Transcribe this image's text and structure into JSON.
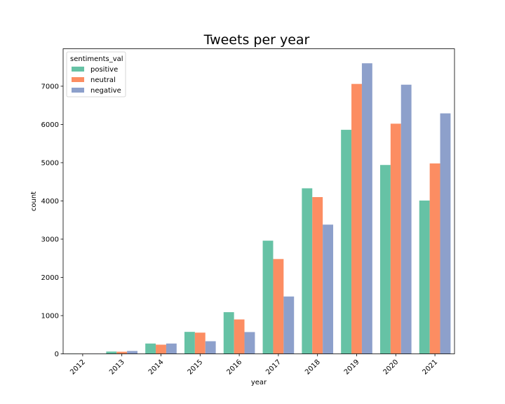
{
  "chart_data": {
    "type": "bar",
    "title": "Tweets per year",
    "xlabel": "year",
    "ylabel": "count",
    "categories": [
      "2012",
      "2013",
      "2014",
      "2015",
      "2016",
      "2017",
      "2018",
      "2019",
      "2020",
      "2021"
    ],
    "yticks": [
      0,
      1000,
      2000,
      3000,
      4000,
      5000,
      6000,
      7000
    ],
    "ylim": [
      0,
      7980
    ],
    "grid": false,
    "legend": {
      "title": "sentiments_val",
      "placement": "top-left"
    },
    "series": [
      {
        "name": "positive",
        "color": "#66c2a5",
        "values": [
          5,
          60,
          270,
          575,
          1090,
          2960,
          4330,
          5860,
          4940,
          4010
        ]
      },
      {
        "name": "neutral",
        "color": "#fc8d62",
        "values": [
          3,
          55,
          240,
          555,
          900,
          2480,
          4100,
          7060,
          6020,
          4980
        ]
      },
      {
        "name": "negative",
        "color": "#8da0cb",
        "values": [
          2,
          75,
          270,
          330,
          570,
          1500,
          3380,
          7600,
          7040,
          6290
        ]
      }
    ]
  }
}
